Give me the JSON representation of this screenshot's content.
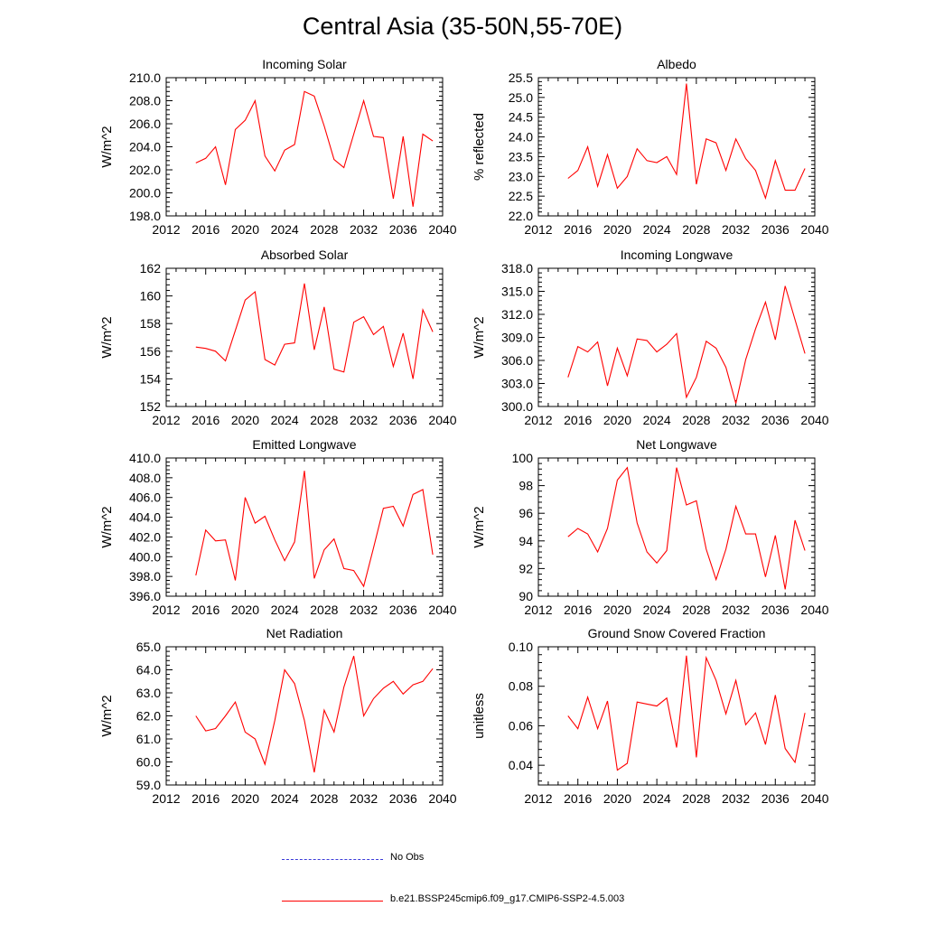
{
  "title": "Central Asia (35-50N,55-70E)",
  "legend": {
    "obs_label": "No Obs",
    "model_label": "b.e21.BSSP245cmip6.f09_g17.CMIP6-SSP2-4.5.003"
  },
  "colors": {
    "model_line": "#ff0000",
    "obs_line": "#3a3ad8"
  },
  "chart_data": [
    {
      "type": "line",
      "title": "Incoming Solar",
      "xlabel": "",
      "ylabel": "W/m^2",
      "xlim": [
        2012,
        2040
      ],
      "xticks": [
        2012,
        2016,
        2020,
        2024,
        2028,
        2032,
        2036,
        2040
      ],
      "ylim": [
        198,
        210
      ],
      "yticks": [
        "198.0",
        "200.0",
        "202.0",
        "204.0",
        "206.0",
        "208.0",
        "210.0"
      ],
      "x": [
        2015,
        2016,
        2017,
        2018,
        2019,
        2020,
        2021,
        2022,
        2023,
        2024,
        2025,
        2026,
        2027,
        2028,
        2029,
        2030,
        2031,
        2032,
        2033,
        2034,
        2035,
        2036,
        2037,
        2038,
        2039
      ],
      "y": [
        202.6,
        203.0,
        204.0,
        200.7,
        205.5,
        206.3,
        208.0,
        203.2,
        201.9,
        203.7,
        204.2,
        208.8,
        208.4,
        205.8,
        202.9,
        202.2,
        205.1,
        208.0,
        204.9,
        204.8,
        199.5,
        204.9,
        198.8,
        205.1,
        204.5
      ]
    },
    {
      "type": "line",
      "title": "Albedo",
      "xlabel": "",
      "ylabel": "% reflected",
      "xlim": [
        2012,
        2040
      ],
      "xticks": [
        2012,
        2016,
        2020,
        2024,
        2028,
        2032,
        2036,
        2040
      ],
      "ylim": [
        22,
        25.5
      ],
      "yticks": [
        "22.0",
        "22.5",
        "23.0",
        "23.5",
        "24.0",
        "24.5",
        "25.0",
        "25.5"
      ],
      "x": [
        2015,
        2016,
        2017,
        2018,
        2019,
        2020,
        2021,
        2022,
        2023,
        2024,
        2025,
        2026,
        2027,
        2028,
        2029,
        2030,
        2031,
        2032,
        2033,
        2034,
        2035,
        2036,
        2037,
        2038,
        2039
      ],
      "y": [
        22.95,
        23.15,
        23.75,
        22.75,
        23.55,
        22.7,
        23.0,
        23.7,
        23.4,
        23.35,
        23.5,
        23.05,
        25.35,
        22.8,
        23.95,
        23.85,
        23.15,
        23.95,
        23.45,
        23.15,
        22.45,
        23.4,
        22.65,
        22.65,
        23.2
      ]
    },
    {
      "type": "line",
      "title": "Absorbed Solar",
      "xlabel": "",
      "ylabel": "W/m^2",
      "xlim": [
        2012,
        2040
      ],
      "xticks": [
        2012,
        2016,
        2020,
        2024,
        2028,
        2032,
        2036,
        2040
      ],
      "ylim": [
        152,
        162
      ],
      "yticks": [
        "152",
        "154",
        "156",
        "158",
        "160",
        "162"
      ],
      "x": [
        2015,
        2016,
        2017,
        2018,
        2019,
        2020,
        2021,
        2022,
        2023,
        2024,
        2025,
        2026,
        2027,
        2028,
        2029,
        2030,
        2031,
        2032,
        2033,
        2034,
        2035,
        2036,
        2037,
        2038,
        2039
      ],
      "y": [
        156.3,
        156.2,
        156.0,
        155.3,
        157.5,
        159.7,
        160.3,
        155.4,
        155.0,
        156.5,
        156.6,
        160.9,
        156.1,
        159.2,
        154.7,
        154.5,
        158.1,
        158.5,
        157.2,
        157.8,
        154.9,
        157.3,
        154.0,
        159.0,
        157.4
      ]
    },
    {
      "type": "line",
      "title": "Incoming Longwave",
      "xlabel": "",
      "ylabel": "W/m^2",
      "xlim": [
        2012,
        2040
      ],
      "xticks": [
        2012,
        2016,
        2020,
        2024,
        2028,
        2032,
        2036,
        2040
      ],
      "ylim": [
        300,
        318
      ],
      "yticks": [
        "300.0",
        "303.0",
        "306.0",
        "309.0",
        "312.0",
        "315.0",
        "318.0"
      ],
      "x": [
        2015,
        2016,
        2017,
        2018,
        2019,
        2020,
        2021,
        2022,
        2023,
        2024,
        2025,
        2026,
        2027,
        2028,
        2029,
        2030,
        2031,
        2032,
        2033,
        2034,
        2035,
        2036,
        2037,
        2038,
        2039
      ],
      "y": [
        303.8,
        307.8,
        307.1,
        308.4,
        302.7,
        307.6,
        304.0,
        308.8,
        308.6,
        307.1,
        308.1,
        309.5,
        301.2,
        303.8,
        308.5,
        307.6,
        305.1,
        300.4,
        306.1,
        310.1,
        313.6,
        308.7,
        315.7,
        311.3,
        306.9
      ]
    },
    {
      "type": "line",
      "title": "Emitted Longwave",
      "xlabel": "",
      "ylabel": "W/m^2",
      "xlim": [
        2012,
        2040
      ],
      "xticks": [
        2012,
        2016,
        2020,
        2024,
        2028,
        2032,
        2036,
        2040
      ],
      "ylim": [
        396,
        410
      ],
      "yticks": [
        "396.0",
        "398.0",
        "400.0",
        "402.0",
        "404.0",
        "406.0",
        "408.0",
        "410.0"
      ],
      "x": [
        2015,
        2016,
        2017,
        2018,
        2019,
        2020,
        2021,
        2022,
        2023,
        2024,
        2025,
        2026,
        2027,
        2028,
        2029,
        2030,
        2031,
        2032,
        2033,
        2034,
        2035,
        2036,
        2037,
        2038,
        2039
      ],
      "y": [
        398.1,
        402.7,
        401.6,
        401.7,
        397.6,
        406.0,
        403.4,
        404.1,
        401.7,
        399.6,
        401.5,
        408.7,
        397.8,
        400.7,
        401.8,
        398.8,
        398.6,
        397.0,
        400.9,
        404.9,
        405.1,
        403.1,
        406.3,
        406.8,
        400.2
      ]
    },
    {
      "type": "line",
      "title": "Net Longwave",
      "xlabel": "",
      "ylabel": "W/m^2",
      "xlim": [
        2012,
        2040
      ],
      "xticks": [
        2012,
        2016,
        2020,
        2024,
        2028,
        2032,
        2036,
        2040
      ],
      "ylim": [
        90,
        100
      ],
      "yticks": [
        "90",
        "92",
        "94",
        "96",
        "98",
        "100"
      ],
      "x": [
        2015,
        2016,
        2017,
        2018,
        2019,
        2020,
        2021,
        2022,
        2023,
        2024,
        2025,
        2026,
        2027,
        2028,
        2029,
        2030,
        2031,
        2032,
        2033,
        2034,
        2035,
        2036,
        2037,
        2038,
        2039
      ],
      "y": [
        94.3,
        94.9,
        94.5,
        93.2,
        94.9,
        98.4,
        99.3,
        95.3,
        93.2,
        92.4,
        93.3,
        99.3,
        96.6,
        96.9,
        93.4,
        91.2,
        93.4,
        96.5,
        94.5,
        94.5,
        91.4,
        94.4,
        90.5,
        95.5,
        93.3
      ]
    },
    {
      "type": "line",
      "title": "Net Radiation",
      "xlabel": "",
      "ylabel": "W/m^2",
      "xlim": [
        2012,
        2040
      ],
      "xticks": [
        2012,
        2016,
        2020,
        2024,
        2028,
        2032,
        2036,
        2040
      ],
      "ylim": [
        59,
        65
      ],
      "yticks": [
        "59.0",
        "60.0",
        "61.0",
        "62.0",
        "63.0",
        "64.0",
        "65.0"
      ],
      "x": [
        2015,
        2016,
        2017,
        2018,
        2019,
        2020,
        2021,
        2022,
        2023,
        2024,
        2025,
        2026,
        2027,
        2028,
        2029,
        2030,
        2031,
        2032,
        2033,
        2034,
        2035,
        2036,
        2037,
        2038,
        2039
      ],
      "y": [
        62.0,
        61.35,
        61.45,
        62.0,
        62.6,
        61.3,
        61.0,
        59.9,
        61.8,
        64.0,
        63.4,
        61.8,
        59.55,
        62.25,
        61.3,
        63.25,
        64.6,
        62.0,
        62.75,
        63.2,
        63.5,
        62.95,
        63.35,
        63.5,
        64.05
      ]
    },
    {
      "type": "line",
      "title": "Ground Snow Covered Fraction",
      "xlabel": "",
      "ylabel": "unitless",
      "xlim": [
        2012,
        2040
      ],
      "xticks": [
        2012,
        2016,
        2020,
        2024,
        2028,
        2032,
        2036,
        2040
      ],
      "ylim": [
        0.03,
        0.1
      ],
      "yticks": [
        "0.04",
        "0.06",
        "0.08",
        "0.10"
      ],
      "x": [
        2015,
        2016,
        2017,
        2018,
        2019,
        2020,
        2021,
        2022,
        2023,
        2024,
        2025,
        2026,
        2027,
        2028,
        2029,
        2030,
        2031,
        2032,
        2033,
        2034,
        2035,
        2036,
        2037,
        2038,
        2039
      ],
      "y": [
        0.065,
        0.0585,
        0.0745,
        0.0585,
        0.0725,
        0.0375,
        0.041,
        0.072,
        0.071,
        0.07,
        0.074,
        0.049,
        0.0955,
        0.044,
        0.0945,
        0.083,
        0.066,
        0.083,
        0.0605,
        0.0665,
        0.0505,
        0.0755,
        0.0485,
        0.0415,
        0.0665
      ]
    }
  ]
}
